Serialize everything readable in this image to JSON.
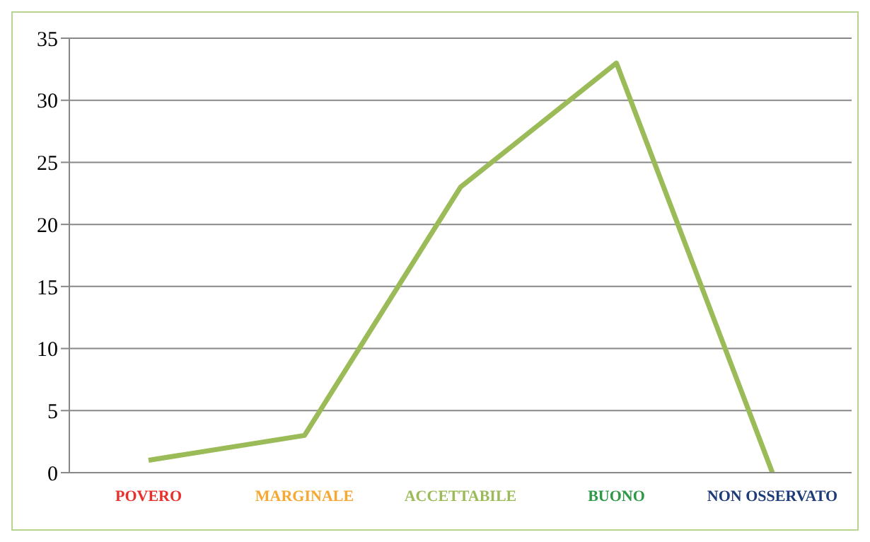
{
  "chart_data": {
    "type": "line",
    "categories": [
      "POVERO",
      "MARGINALE",
      "ACCETTABILE",
      "BUONO",
      "NON OSSERVATO"
    ],
    "series": [
      {
        "color": "#9bbb59",
        "values": [
          1,
          3,
          23,
          33,
          0
        ]
      }
    ],
    "ylim": [
      0,
      35
    ],
    "yticks": [
      0,
      5,
      10,
      15,
      20,
      25,
      30,
      35
    ],
    "grid": "y",
    "legend": false,
    "marker": "none"
  }
}
